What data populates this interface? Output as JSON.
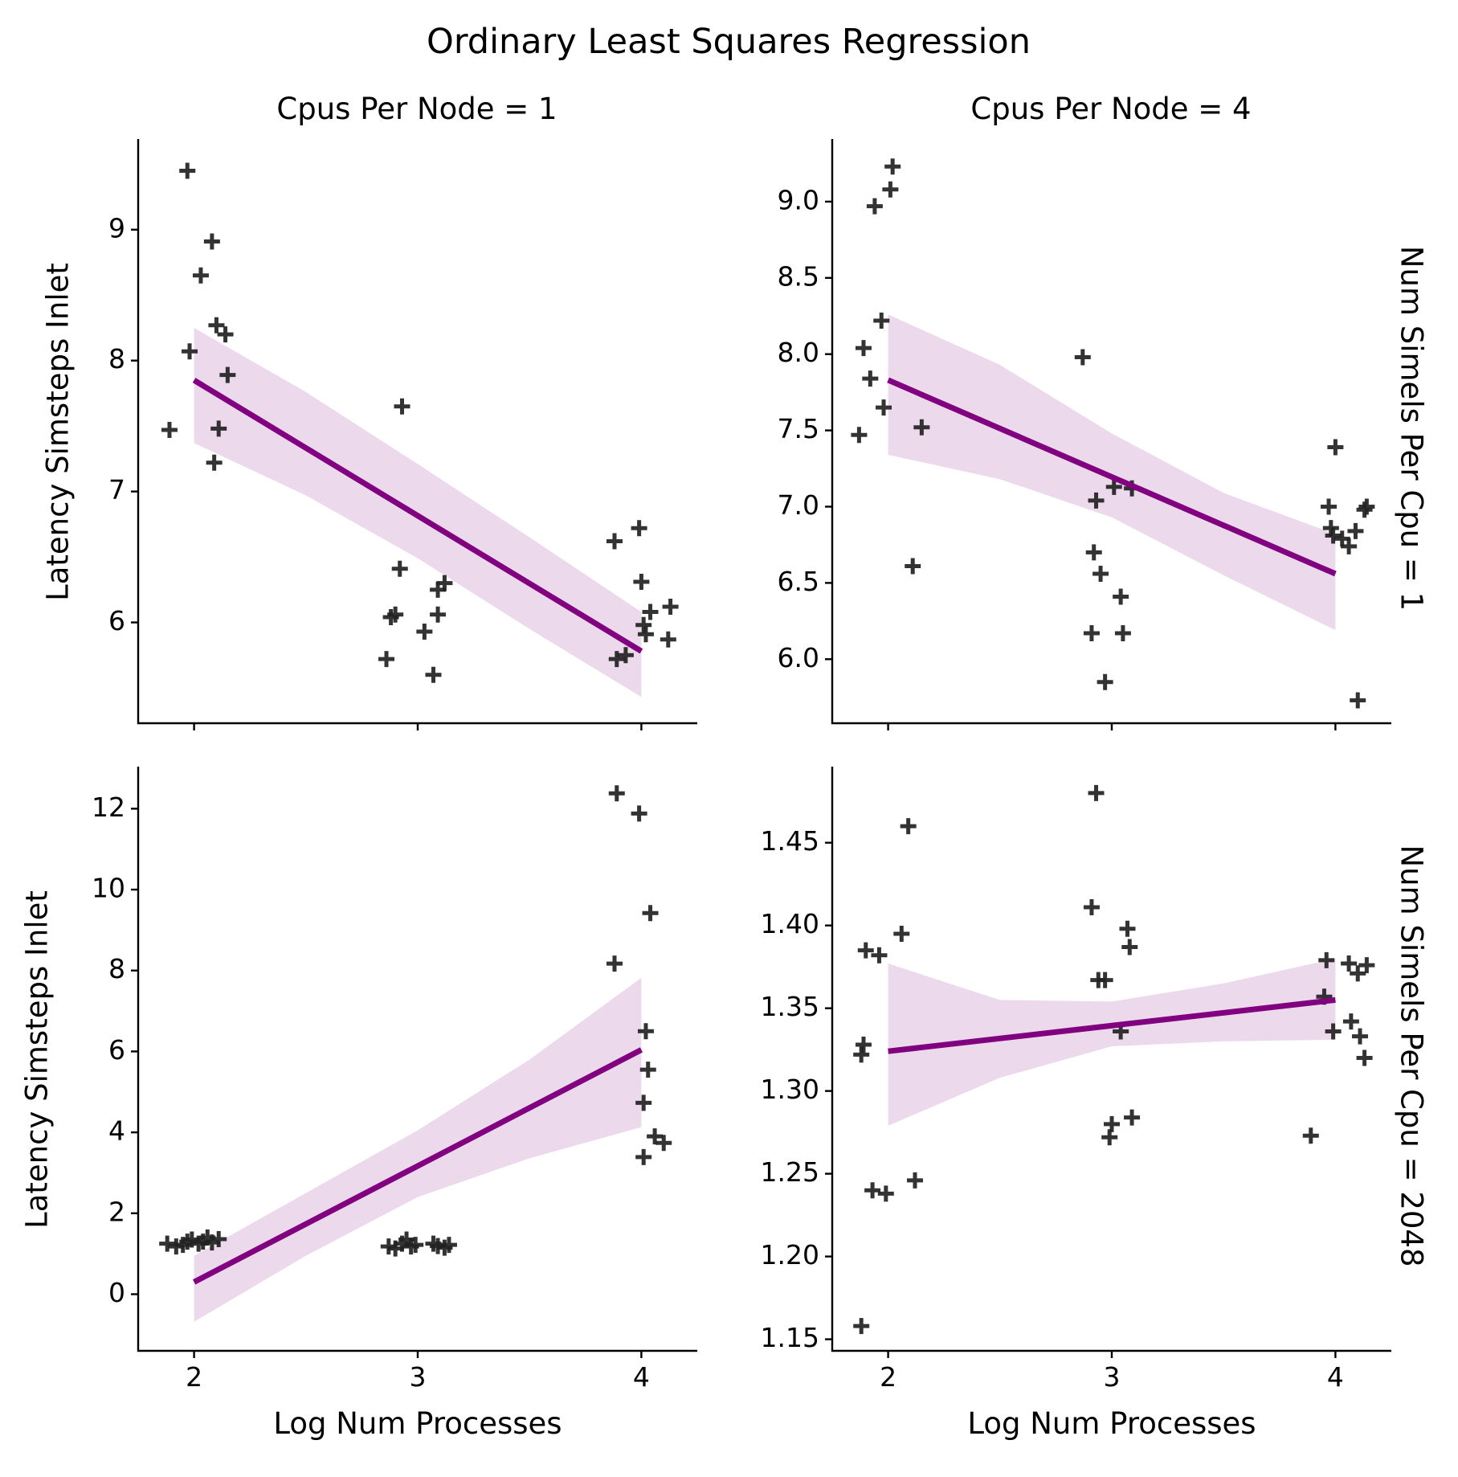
{
  "title": "Ordinary Least Squares Regression",
  "col_titles": [
    "Cpus Per Node = 1",
    "Cpus Per Node = 4"
  ],
  "row_titles": [
    "Num Simels Per Cpu = 1",
    "Num Simels Per Cpu = 2048"
  ],
  "colors": {
    "fit_line": "#800080",
    "ci_band": "#800080",
    "points": "#222222"
  },
  "chart_data": [
    {
      "type": "scatter",
      "facet": {
        "cpus_per_node": 1,
        "num_simels_per_cpu": 1
      },
      "xlabel": "",
      "ylabel": "Latency Simsteps Inlet",
      "xlim": [
        1.75,
        4.25
      ],
      "ylim": [
        5.23,
        9.68
      ],
      "xticks": [
        2,
        3,
        4
      ],
      "yticks": [
        6,
        7,
        8,
        9
      ],
      "ytick_labels": [
        "6",
        "7",
        "8",
        "9"
      ],
      "points": [
        [
          1.89,
          7.47
        ],
        [
          1.97,
          9.45
        ],
        [
          1.98,
          8.07
        ],
        [
          2.03,
          8.65
        ],
        [
          2.08,
          8.91
        ],
        [
          2.09,
          7.22
        ],
        [
          2.1,
          8.27
        ],
        [
          2.11,
          7.48
        ],
        [
          2.14,
          8.2
        ],
        [
          2.15,
          7.89
        ],
        [
          2.86,
          5.72
        ],
        [
          2.88,
          6.04
        ],
        [
          2.9,
          6.06
        ],
        [
          2.92,
          6.41
        ],
        [
          2.93,
          7.65
        ],
        [
          3.03,
          5.93
        ],
        [
          3.07,
          5.6
        ],
        [
          3.09,
          6.06
        ],
        [
          3.09,
          6.25
        ],
        [
          3.12,
          6.3
        ],
        [
          3.88,
          6.62
        ],
        [
          3.89,
          5.72
        ],
        [
          3.93,
          5.75
        ],
        [
          3.99,
          6.72
        ],
        [
          4.0,
          6.31
        ],
        [
          4.01,
          5.98
        ],
        [
          4.02,
          5.91
        ],
        [
          4.04,
          6.08
        ],
        [
          4.12,
          5.87
        ],
        [
          4.13,
          6.12
        ]
      ],
      "fit": {
        "x": [
          2.0,
          4.0
        ],
        "y": [
          7.85,
          5.78
        ]
      },
      "ci": {
        "x": [
          2.0,
          2.5,
          3.0,
          3.5,
          4.0
        ],
        "upper": [
          8.25,
          7.76,
          7.21,
          6.65,
          6.08
        ],
        "lower": [
          7.37,
          6.97,
          6.49,
          5.95,
          5.43
        ]
      }
    },
    {
      "type": "scatter",
      "facet": {
        "cpus_per_node": 4,
        "num_simels_per_cpu": 1
      },
      "xlabel": "",
      "ylabel": "",
      "xlim": [
        1.75,
        4.25
      ],
      "ylim": [
        5.58,
        9.4
      ],
      "xticks": [
        2,
        3,
        4
      ],
      "yticks": [
        6.0,
        6.5,
        7.0,
        7.5,
        8.0,
        8.5,
        9.0
      ],
      "ytick_labels": [
        "6.0",
        "6.5",
        "7.0",
        "7.5",
        "8.0",
        "8.5",
        "9.0"
      ],
      "points": [
        [
          1.87,
          7.47
        ],
        [
          1.89,
          8.04
        ],
        [
          1.92,
          7.84
        ],
        [
          1.94,
          8.97
        ],
        [
          1.97,
          8.22
        ],
        [
          1.98,
          7.65
        ],
        [
          2.01,
          9.08
        ],
        [
          2.02,
          9.23
        ],
        [
          2.11,
          6.61
        ],
        [
          2.15,
          7.52
        ],
        [
          2.87,
          7.98
        ],
        [
          2.91,
          6.17
        ],
        [
          2.92,
          6.7
        ],
        [
          2.93,
          7.04
        ],
        [
          2.95,
          6.56
        ],
        [
          2.97,
          5.85
        ],
        [
          3.01,
          7.13
        ],
        [
          3.04,
          6.41
        ],
        [
          3.05,
          6.17
        ],
        [
          3.09,
          7.12
        ],
        [
          3.97,
          7.0
        ],
        [
          3.98,
          6.86
        ],
        [
          3.99,
          6.81
        ],
        [
          4.0,
          7.39
        ],
        [
          4.03,
          6.79
        ],
        [
          4.06,
          6.74
        ],
        [
          4.09,
          6.84
        ],
        [
          4.1,
          5.73
        ],
        [
          4.13,
          6.98
        ],
        [
          4.14,
          7.0
        ]
      ],
      "fit": {
        "x": [
          2.0,
          4.0
        ],
        "y": [
          7.83,
          6.56
        ]
      },
      "ci": {
        "x": [
          2.0,
          2.5,
          3.0,
          3.5,
          4.0
        ],
        "upper": [
          8.26,
          7.93,
          7.48,
          7.09,
          6.82
        ],
        "lower": [
          7.34,
          7.18,
          6.93,
          6.55,
          6.19
        ]
      }
    },
    {
      "type": "scatter",
      "facet": {
        "cpus_per_node": 1,
        "num_simels_per_cpu": 2048
      },
      "xlabel": "Log Num Processes",
      "ylabel": "Latency Simsteps Inlet",
      "xlim": [
        1.75,
        4.25
      ],
      "ylim": [
        -1.4,
        13.0
      ],
      "xticks": [
        2,
        3,
        4
      ],
      "yticks": [
        0,
        2,
        4,
        6,
        8,
        10,
        12
      ],
      "ytick_labels": [
        "0",
        "2",
        "4",
        "6",
        "8",
        "10",
        "12"
      ],
      "points": [
        [
          1.88,
          1.25
        ],
        [
          1.92,
          1.18
        ],
        [
          1.95,
          1.22
        ],
        [
          1.97,
          1.3
        ],
        [
          1.99,
          1.35
        ],
        [
          2.02,
          1.25
        ],
        [
          2.04,
          1.3
        ],
        [
          2.06,
          1.4
        ],
        [
          2.08,
          1.28
        ],
        [
          2.11,
          1.36
        ],
        [
          2.87,
          1.18
        ],
        [
          2.9,
          1.13
        ],
        [
          2.93,
          1.25
        ],
        [
          2.95,
          1.35
        ],
        [
          2.97,
          1.18
        ],
        [
          2.99,
          1.22
        ],
        [
          3.07,
          1.25
        ],
        [
          3.09,
          1.19
        ],
        [
          3.12,
          1.15
        ],
        [
          3.14,
          1.22
        ],
        [
          3.88,
          8.17
        ],
        [
          3.89,
          12.38
        ],
        [
          3.99,
          11.88
        ],
        [
          4.01,
          3.39
        ],
        [
          4.01,
          4.73
        ],
        [
          4.02,
          6.5
        ],
        [
          4.03,
          5.55
        ],
        [
          4.04,
          9.42
        ],
        [
          4.06,
          3.9
        ],
        [
          4.1,
          3.74
        ]
      ],
      "fit": {
        "x": [
          2.0,
          4.0
        ],
        "y": [
          0.3,
          6.04
        ]
      },
      "ci": {
        "x": [
          2.0,
          2.5,
          3.0,
          3.5,
          4.0
        ],
        "upper": [
          0.95,
          2.5,
          4.05,
          5.8,
          7.82
        ],
        "lower": [
          -0.68,
          0.95,
          2.4,
          3.36,
          4.13
        ]
      }
    },
    {
      "type": "scatter",
      "facet": {
        "cpus_per_node": 4,
        "num_simels_per_cpu": 2048
      },
      "xlabel": "Log Num Processes",
      "ylabel": "",
      "xlim": [
        1.75,
        4.25
      ],
      "ylim": [
        1.143,
        1.495
      ],
      "xticks": [
        2,
        3,
        4
      ],
      "yticks": [
        1.15,
        1.2,
        1.25,
        1.3,
        1.35,
        1.4,
        1.45
      ],
      "ytick_labels": [
        "1.15",
        "1.20",
        "1.25",
        "1.30",
        "1.35",
        "1.40",
        "1.45"
      ],
      "points": [
        [
          1.88,
          1.158
        ],
        [
          1.88,
          1.322
        ],
        [
          1.89,
          1.328
        ],
        [
          1.9,
          1.385
        ],
        [
          1.93,
          1.24
        ],
        [
          1.96,
          1.382
        ],
        [
          1.99,
          1.238
        ],
        [
          2.06,
          1.395
        ],
        [
          2.09,
          1.46
        ],
        [
          2.12,
          1.246
        ],
        [
          2.91,
          1.411
        ],
        [
          2.93,
          1.48
        ],
        [
          2.94,
          1.367
        ],
        [
          2.97,
          1.367
        ],
        [
          2.99,
          1.272
        ],
        [
          3.0,
          1.28
        ],
        [
          3.04,
          1.336
        ],
        [
          3.07,
          1.398
        ],
        [
          3.08,
          1.387
        ],
        [
          3.09,
          1.284
        ],
        [
          3.89,
          1.273
        ],
        [
          3.95,
          1.357
        ],
        [
          3.96,
          1.379
        ],
        [
          3.99,
          1.336
        ],
        [
          4.06,
          1.377
        ],
        [
          4.07,
          1.342
        ],
        [
          4.1,
          1.371
        ],
        [
          4.11,
          1.333
        ],
        [
          4.13,
          1.32
        ],
        [
          4.14,
          1.376
        ]
      ],
      "fit": {
        "x": [
          2.0,
          4.0
        ],
        "y": [
          1.324,
          1.355
        ]
      },
      "ci": {
        "x": [
          2.0,
          2.5,
          3.0,
          3.5,
          4.0
        ],
        "upper": [
          1.377,
          1.355,
          1.354,
          1.365,
          1.38
        ],
        "lower": [
          1.279,
          1.308,
          1.327,
          1.33,
          1.331
        ]
      }
    }
  ]
}
